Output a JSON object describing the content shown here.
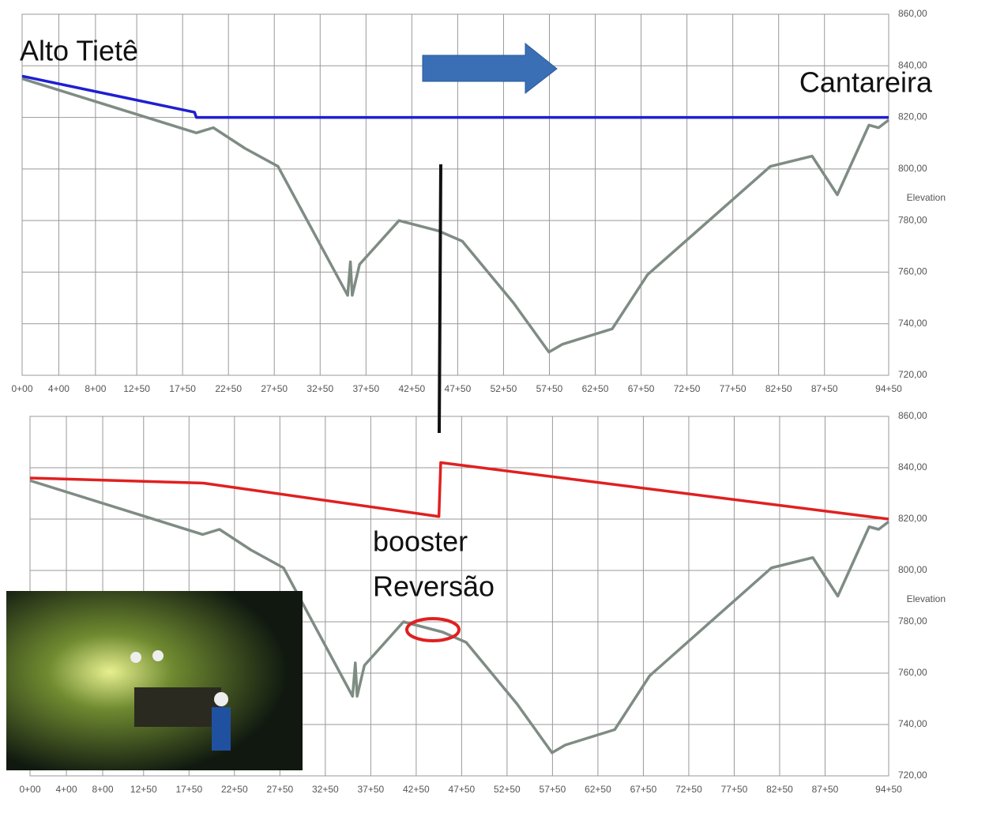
{
  "chart_data": [
    {
      "type": "line",
      "y_label": "Elevation",
      "annotations": [
        "Alto Tietê",
        "Cantareira"
      ],
      "xlim": [
        0,
        9450
      ],
      "xticks": [
        {
          "value": 0,
          "label": "0+00"
        },
        {
          "value": 400,
          "label": "4+00"
        },
        {
          "value": 800,
          "label": "8+00"
        },
        {
          "value": 1250,
          "label": "12+50"
        },
        {
          "value": 1750,
          "label": "17+50"
        },
        {
          "value": 2250,
          "label": "22+50"
        },
        {
          "value": 2750,
          "label": "27+50"
        },
        {
          "value": 3250,
          "label": "32+50"
        },
        {
          "value": 3750,
          "label": "37+50"
        },
        {
          "value": 4250,
          "label": "42+50"
        },
        {
          "value": 4750,
          "label": "47+50"
        },
        {
          "value": 5250,
          "label": "52+50"
        },
        {
          "value": 5750,
          "label": "57+50"
        },
        {
          "value": 6250,
          "label": "62+50"
        },
        {
          "value": 6750,
          "label": "67+50"
        },
        {
          "value": 7250,
          "label": "72+50"
        },
        {
          "value": 7750,
          "label": "77+50"
        },
        {
          "value": 8250,
          "label": "82+50"
        },
        {
          "value": 8750,
          "label": "87+50"
        },
        {
          "value": 9450,
          "label": "94+50"
        }
      ],
      "ylim": [
        720,
        860
      ],
      "yticks": [
        {
          "value": 720,
          "label": "720,00"
        },
        {
          "value": 740,
          "label": "740,00"
        },
        {
          "value": 760,
          "label": "760,00"
        },
        {
          "value": 780,
          "label": "780,00"
        },
        {
          "value": 800,
          "label": "800,00"
        },
        {
          "value": 820,
          "label": "820,00"
        },
        {
          "value": 840,
          "label": "840,00"
        },
        {
          "value": 860,
          "label": "860,00"
        }
      ],
      "grid": true,
      "series": [
        {
          "color": "#7f8c84",
          "x": [
            0,
            1900,
            2085,
            2430,
            2790,
            3550,
            3580,
            3600,
            3680,
            4110,
            4540,
            4800,
            5360,
            5745,
            5890,
            6435,
            6820,
            8160,
            8615,
            8890,
            9235,
            9340,
            9450
          ],
          "values": [
            835,
            814,
            816,
            808,
            801,
            751,
            764,
            751,
            763,
            780,
            776,
            772,
            748,
            729,
            732,
            738,
            759,
            801,
            805,
            790,
            817,
            816,
            819
          ]
        },
        {
          "color": "#1f1fd0",
          "x": [
            0,
            1880,
            1900,
            9450
          ],
          "values": [
            836,
            822,
            820,
            820
          ]
        }
      ]
    },
    {
      "type": "line",
      "y_label": "Elevation",
      "annotations": [
        "booster",
        "Reversão"
      ],
      "xlim": [
        0,
        9450
      ],
      "xticks": [
        {
          "value": 0,
          "label": "0+00"
        },
        {
          "value": 400,
          "label": "4+00"
        },
        {
          "value": 800,
          "label": "8+00"
        },
        {
          "value": 1250,
          "label": "12+50"
        },
        {
          "value": 1750,
          "label": "17+50"
        },
        {
          "value": 2250,
          "label": "22+50"
        },
        {
          "value": 2750,
          "label": "27+50"
        },
        {
          "value": 3250,
          "label": "32+50"
        },
        {
          "value": 3750,
          "label": "37+50"
        },
        {
          "value": 4250,
          "label": "42+50"
        },
        {
          "value": 4750,
          "label": "47+50"
        },
        {
          "value": 5250,
          "label": "52+50"
        },
        {
          "value": 5750,
          "label": "57+50"
        },
        {
          "value": 6250,
          "label": "62+50"
        },
        {
          "value": 6750,
          "label": "67+50"
        },
        {
          "value": 7250,
          "label": "72+50"
        },
        {
          "value": 7750,
          "label": "77+50"
        },
        {
          "value": 8250,
          "label": "82+50"
        },
        {
          "value": 8750,
          "label": "87+50"
        },
        {
          "value": 9450,
          "label": "94+50"
        }
      ],
      "ylim": [
        720,
        860
      ],
      "yticks": [
        {
          "value": 720,
          "label": "720,00"
        },
        {
          "value": 740,
          "label": "740,00"
        },
        {
          "value": 760,
          "label": "760,00"
        },
        {
          "value": 780,
          "label": "780,00"
        },
        {
          "value": 800,
          "label": "800,00"
        },
        {
          "value": 820,
          "label": "820,00"
        },
        {
          "value": 840,
          "label": "840,00"
        },
        {
          "value": 860,
          "label": "860,00"
        }
      ],
      "grid": true,
      "series": [
        {
          "color": "#7f8c84",
          "x": [
            0,
            1900,
            2085,
            2430,
            2790,
            3550,
            3580,
            3600,
            3680,
            4110,
            4540,
            4800,
            5360,
            5745,
            5890,
            6435,
            6820,
            8160,
            8615,
            8890,
            9235,
            9340,
            9450
          ],
          "values": [
            835,
            814,
            816,
            808,
            801,
            751,
            764,
            751,
            763,
            780,
            776,
            772,
            748,
            729,
            732,
            738,
            759,
            801,
            805,
            790,
            817,
            816,
            819
          ]
        },
        {
          "color": "#e02020",
          "x": [
            0,
            1910,
            4500,
            4520,
            9450
          ],
          "values": [
            836,
            834,
            821,
            842,
            820
          ]
        }
      ]
    }
  ]
}
